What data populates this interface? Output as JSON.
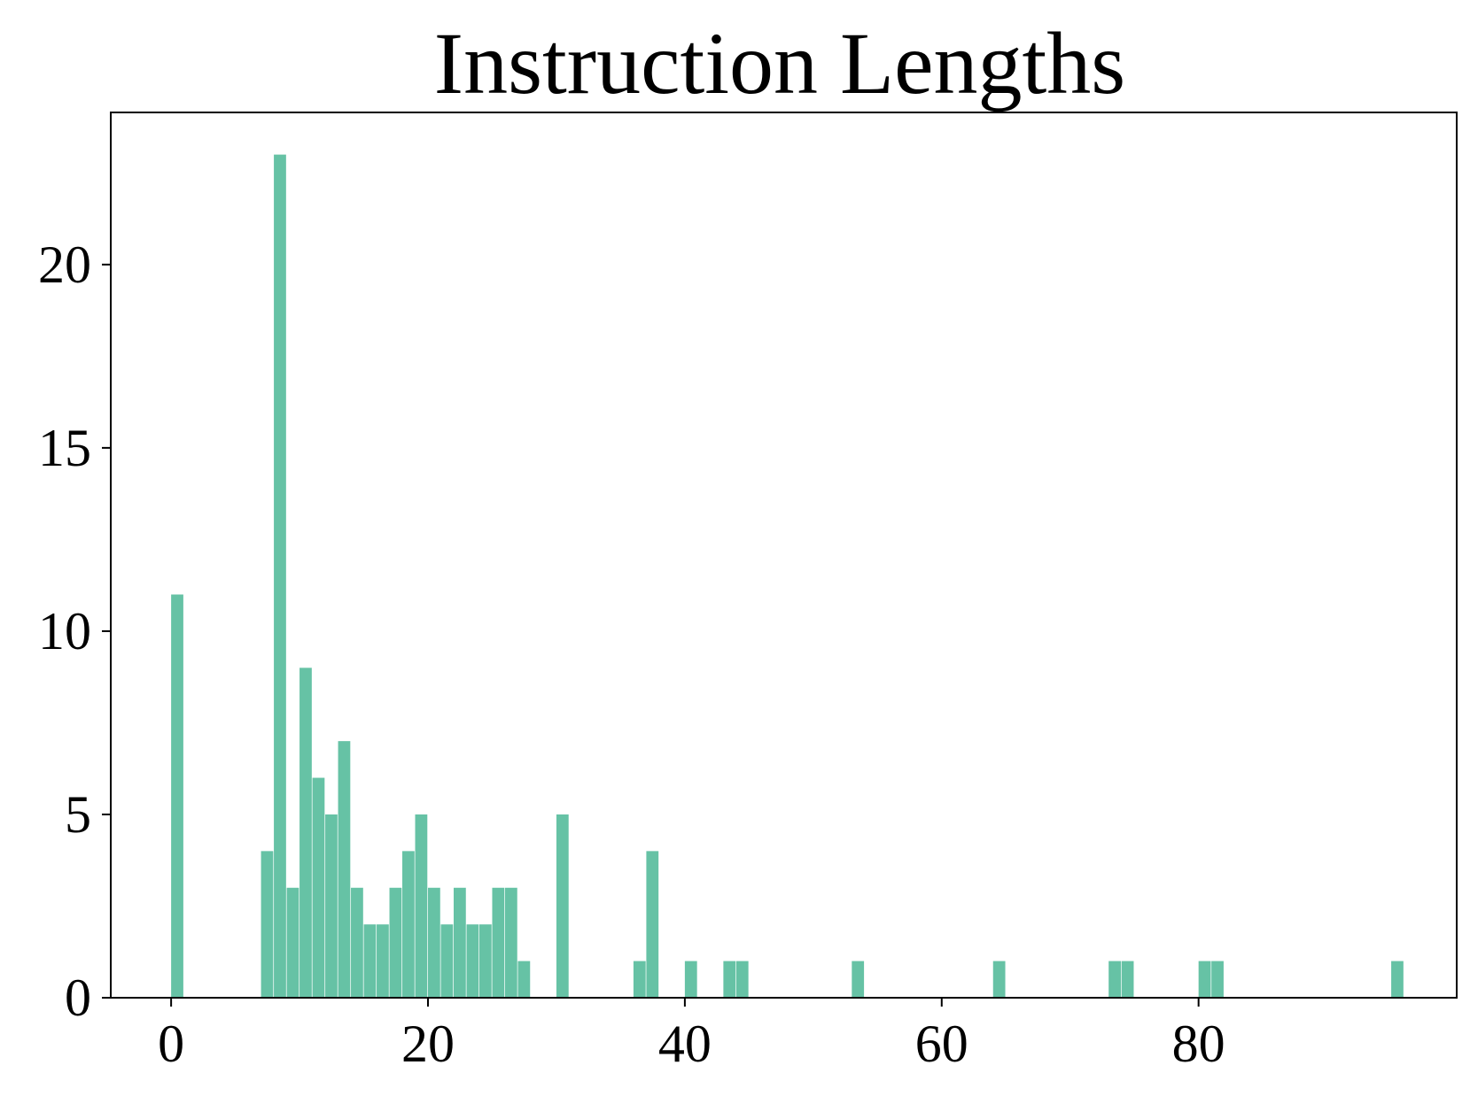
{
  "chart_data": {
    "type": "bar",
    "title": "Instruction Lengths",
    "xlabel": "",
    "ylabel": "",
    "xlim": [
      -4.7,
      100.1
    ],
    "ylim": [
      0,
      24.15
    ],
    "bin_width": 0.95,
    "bar_color": "#66c2a5",
    "grid": false,
    "x_ticks": [
      0,
      20,
      40,
      60,
      80
    ],
    "y_ticks": [
      0,
      5,
      10,
      15,
      20
    ],
    "bins": [
      {
        "x": 0,
        "value": 11
      },
      {
        "x": 7,
        "value": 4
      },
      {
        "x": 8,
        "value": 23
      },
      {
        "x": 9,
        "value": 3
      },
      {
        "x": 10,
        "value": 9
      },
      {
        "x": 11,
        "value": 6
      },
      {
        "x": 12,
        "value": 5
      },
      {
        "x": 13,
        "value": 7
      },
      {
        "x": 14,
        "value": 3
      },
      {
        "x": 15,
        "value": 2
      },
      {
        "x": 16,
        "value": 2
      },
      {
        "x": 17,
        "value": 3
      },
      {
        "x": 18,
        "value": 4
      },
      {
        "x": 19,
        "value": 5
      },
      {
        "x": 20,
        "value": 3
      },
      {
        "x": 21,
        "value": 2
      },
      {
        "x": 22,
        "value": 3
      },
      {
        "x": 23,
        "value": 2
      },
      {
        "x": 24,
        "value": 2
      },
      {
        "x": 25,
        "value": 3
      },
      {
        "x": 26,
        "value": 3
      },
      {
        "x": 27,
        "value": 1
      },
      {
        "x": 30,
        "value": 5
      },
      {
        "x": 36,
        "value": 1
      },
      {
        "x": 37,
        "value": 4
      },
      {
        "x": 40,
        "value": 1
      },
      {
        "x": 43,
        "value": 1
      },
      {
        "x": 44,
        "value": 1
      },
      {
        "x": 53,
        "value": 1
      },
      {
        "x": 64,
        "value": 1
      },
      {
        "x": 73,
        "value": 1
      },
      {
        "x": 74,
        "value": 1
      },
      {
        "x": 80,
        "value": 1
      },
      {
        "x": 81,
        "value": 1
      },
      {
        "x": 95,
        "value": 1
      }
    ]
  }
}
